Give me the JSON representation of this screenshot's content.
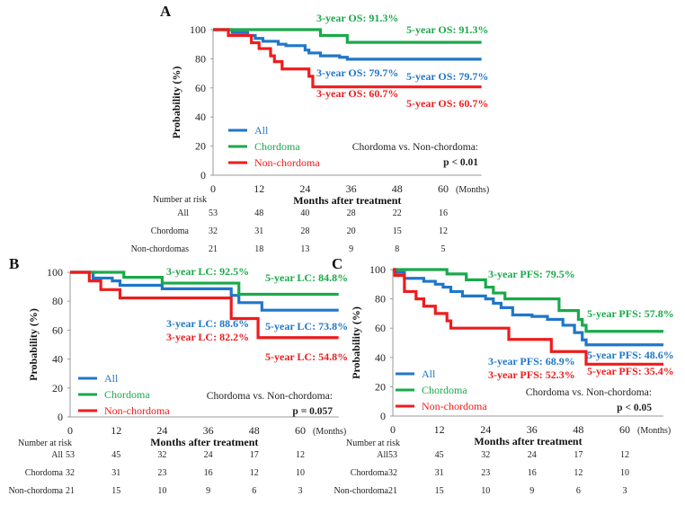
{
  "colors": {
    "All": "#1f77c9",
    "Chordoma": "#1aa94a",
    "Non-chordoma": "#ee1c1c"
  },
  "chart_data": [
    {
      "type": "line",
      "step": true,
      "panel_label": "A",
      "ylabel": "Probability (%)",
      "xlabel": "Months after treatment",
      "x_unit": "(Months)",
      "xticks": [
        0,
        12,
        24,
        36,
        48,
        60
      ],
      "yticks": [
        0,
        20,
        40,
        60,
        80,
        100
      ],
      "xlim": [
        0,
        70
      ],
      "ylim": [
        0,
        100
      ],
      "legend": [
        "All",
        "Chordoma",
        "Non-chordoma"
      ],
      "legend_placement": "bottom-left",
      "series": [
        {
          "name": "All",
          "steps": [
            [
              0,
              100
            ],
            [
              5,
              98
            ],
            [
              9,
              96
            ],
            [
              11,
              94
            ],
            [
              13,
              92
            ],
            [
              17,
              90
            ],
            [
              19,
              89
            ],
            [
              24,
              86
            ],
            [
              25,
              84
            ],
            [
              28,
              82
            ],
            [
              33,
              81
            ],
            [
              35,
              79.7
            ],
            [
              70,
              79.7
            ]
          ]
        },
        {
          "name": "Chordoma",
          "steps": [
            [
              0,
              100
            ],
            [
              28,
              96
            ],
            [
              35,
              91.3
            ],
            [
              70,
              91.3
            ]
          ]
        },
        {
          "name": "Non-chordoma",
          "steps": [
            [
              0,
              100
            ],
            [
              4,
              96
            ],
            [
              10,
              91
            ],
            [
              12,
              87
            ],
            [
              15,
              82
            ],
            [
              16,
              78
            ],
            [
              18,
              73
            ],
            [
              25,
              68
            ],
            [
              26,
              60.7
            ],
            [
              70,
              60.7
            ]
          ]
        }
      ],
      "annotations": {
        "g3": "3-year OS: 91.3%",
        "g5": "5-year OS: 91.3%",
        "b3": "3-year OS: 79.7%",
        "b5": "5-year OS: 79.7%",
        "r3": "3-year OS: 60.7%",
        "r5": "5-year OS: 60.7%"
      },
      "comparison": "Chordoma vs. Non-chordoma:",
      "p_value": "p < 0.01",
      "risk_title": "Number at risk",
      "risk_rows": [
        {
          "label": "All",
          "values": [
            53,
            48,
            40,
            28,
            22,
            16
          ]
        },
        {
          "label": "Chordoma",
          "values": [
            32,
            31,
            28,
            20,
            15,
            12
          ]
        },
        {
          "label": "Non-chordomas",
          "values": [
            21,
            18,
            13,
            9,
            8,
            5
          ]
        }
      ]
    },
    {
      "type": "line",
      "step": true,
      "panel_label": "B",
      "ylabel": "Probability (%)",
      "xlabel": "Months after treatment",
      "x_unit": "(Months)",
      "xticks": [
        0,
        12,
        24,
        36,
        48,
        60
      ],
      "yticks": [
        0,
        20,
        40,
        60,
        80,
        100
      ],
      "xlim": [
        0,
        70
      ],
      "ylim": [
        0,
        100
      ],
      "legend": [
        "All",
        "Chordoma",
        "Non-chordoma"
      ],
      "legend_placement": "bottom-left",
      "series": [
        {
          "name": "All",
          "steps": [
            [
              0,
              100
            ],
            [
              6,
              96
            ],
            [
              11,
              94
            ],
            [
              13,
              91
            ],
            [
              24,
              88.6
            ],
            [
              42,
              84
            ],
            [
              44,
              79
            ],
            [
              50,
              73.8
            ],
            [
              70,
              73.8
            ]
          ]
        },
        {
          "name": "Chordoma",
          "steps": [
            [
              0,
              100
            ],
            [
              14,
              96.5
            ],
            [
              24,
              92.5
            ],
            [
              44,
              84.8
            ],
            [
              70,
              84.8
            ]
          ]
        },
        {
          "name": "Non-chordoma",
          "steps": [
            [
              0,
              100
            ],
            [
              5,
              94
            ],
            [
              8,
              88
            ],
            [
              13,
              82.2
            ],
            [
              42,
              68
            ],
            [
              49,
              54.8
            ],
            [
              70,
              54.8
            ]
          ]
        }
      ],
      "annotations": {
        "g3": "3-year LC: 92.5%",
        "g5": "5-year LC: 84.8%",
        "b3": "3-year LC: 88.6%",
        "b5": "5-year LC: 73.8%",
        "r3": "3-year LC: 82.2%",
        "r5": "5-year LC: 54.8%"
      },
      "comparison": "Chordoma vs. Non-chordoma:",
      "p_value": "p = 0.057",
      "risk_title": "Number at risk",
      "risk_rows": [
        {
          "label": "All",
          "values": [
            53,
            45,
            32,
            24,
            17,
            12
          ]
        },
        {
          "label": "Chordoma",
          "values": [
            32,
            31,
            23,
            16,
            12,
            10
          ]
        },
        {
          "label": "Non-chordoma",
          "values": [
            21,
            15,
            10,
            9,
            6,
            3
          ]
        }
      ]
    },
    {
      "type": "line",
      "step": true,
      "panel_label": "C",
      "ylabel": "Probability (%)",
      "xlabel": "Months after treatment",
      "x_unit": "(Months)",
      "xticks": [
        0,
        12,
        24,
        36,
        48,
        60
      ],
      "yticks": [
        0,
        20,
        40,
        60,
        80,
        100
      ],
      "xlim": [
        0,
        70
      ],
      "ylim": [
        0,
        100
      ],
      "legend": [
        "All",
        "Chordoma",
        "Non-chordoma"
      ],
      "legend_placement": "bottom-left",
      "series": [
        {
          "name": "All",
          "steps": [
            [
              0,
              100
            ],
            [
              1,
              98
            ],
            [
              3,
              94
            ],
            [
              8,
              92
            ],
            [
              11,
              90
            ],
            [
              13,
              88
            ],
            [
              15,
              85
            ],
            [
              18,
              82
            ],
            [
              24,
              80
            ],
            [
              26,
              77
            ],
            [
              28,
              74
            ],
            [
              31,
              69
            ],
            [
              36,
              68
            ],
            [
              40,
              66
            ],
            [
              44,
              62
            ],
            [
              47,
              57
            ],
            [
              49,
              52
            ],
            [
              50,
              48.6
            ],
            [
              70,
              48.6
            ]
          ]
        },
        {
          "name": "Chordoma",
          "steps": [
            [
              0,
              100
            ],
            [
              14,
              97
            ],
            [
              19,
              93
            ],
            [
              24,
              88
            ],
            [
              26,
              84
            ],
            [
              29,
              80
            ],
            [
              43,
              72
            ],
            [
              48,
              66
            ],
            [
              49,
              62
            ],
            [
              50,
              57.8
            ],
            [
              70,
              57.8
            ]
          ]
        },
        {
          "name": "Non-chordoma",
          "steps": [
            [
              0,
              100
            ],
            [
              0.5,
              96
            ],
            [
              3,
              85
            ],
            [
              6,
              80
            ],
            [
              8,
              75
            ],
            [
              11,
              70
            ],
            [
              14,
              65
            ],
            [
              15,
              60
            ],
            [
              30,
              52.3
            ],
            [
              41,
              44
            ],
            [
              50,
              35.4
            ],
            [
              70,
              35.4
            ]
          ]
        }
      ],
      "annotations": {
        "g3": "3-year PFS: 79.5%",
        "g5": "5-year PFS: 57.8%",
        "b3": "3-year PFS: 68.9%",
        "b5": "5-year PFS: 48.6%",
        "r3": "3-year PFS: 52.3%",
        "r5": "5-year PFS: 35.4%"
      },
      "comparison": "Chordoma vs. Non-chordoma:",
      "p_value": "p < 0.05",
      "risk_title": "Number at risk",
      "risk_rows": [
        {
          "label": "All",
          "values": [
            53,
            45,
            32,
            24,
            17,
            12
          ]
        },
        {
          "label": "Chordoma",
          "values": [
            32,
            31,
            23,
            16,
            12,
            10
          ]
        },
        {
          "label": "Non-chordoma",
          "values": [
            21,
            15,
            10,
            9,
            6,
            3
          ]
        }
      ]
    }
  ]
}
